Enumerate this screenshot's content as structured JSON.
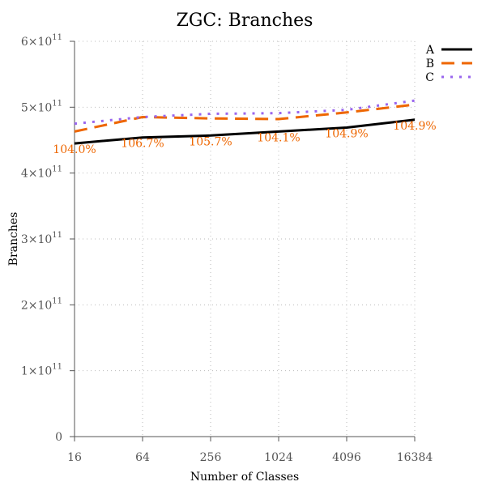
{
  "chart_data": {
    "type": "line",
    "title": "ZGC: Branches",
    "xlabel": "Number of Classes",
    "ylabel": "Branches",
    "x": [
      16,
      64,
      256,
      1024,
      4096,
      16384
    ],
    "xscale": "log2",
    "ylim": [
      0,
      600000000000
    ],
    "yticks": [
      {
        "value": 0,
        "base": "0",
        "exp": ""
      },
      {
        "value": 100000000000,
        "base": "1×10",
        "exp": "11"
      },
      {
        "value": 200000000000,
        "base": "2×10",
        "exp": "11"
      },
      {
        "value": 300000000000,
        "base": "3×10",
        "exp": "11"
      },
      {
        "value": 400000000000,
        "base": "4×10",
        "exp": "11"
      },
      {
        "value": 500000000000,
        "base": "5×10",
        "exp": "11"
      },
      {
        "value": 600000000000,
        "base": "6×10",
        "exp": "11"
      }
    ],
    "xtick_labels": [
      "16",
      "64",
      "256",
      "1024",
      "4096",
      "16384"
    ],
    "grid": true,
    "legend_position": "top-right",
    "series": [
      {
        "name": "A",
        "color": "#000000",
        "style": "solid",
        "values": [
          445000000000,
          454000000000,
          457000000000,
          463000000000,
          469000000000,
          481000000000
        ]
      },
      {
        "name": "B",
        "color": "#ee6600",
        "style": "dashed",
        "values": [
          463000000000,
          485000000000,
          483000000000,
          482000000000,
          492000000000,
          504000000000
        ]
      },
      {
        "name": "C",
        "color": "#9966ee",
        "style": "dotted",
        "values": [
          475000000000,
          485000000000,
          490000000000,
          491000000000,
          496000000000,
          510000000000
        ]
      }
    ],
    "annotations": {
      "series": "B",
      "color": "#ee6600",
      "labels": [
        "104.0%",
        "106.7%",
        "105.7%",
        "104.1%",
        "104.9%",
        "104.9%"
      ],
      "values": [
        445000000000,
        454000000000,
        457000000000,
        463000000000,
        469000000000,
        481000000000
      ]
    }
  }
}
